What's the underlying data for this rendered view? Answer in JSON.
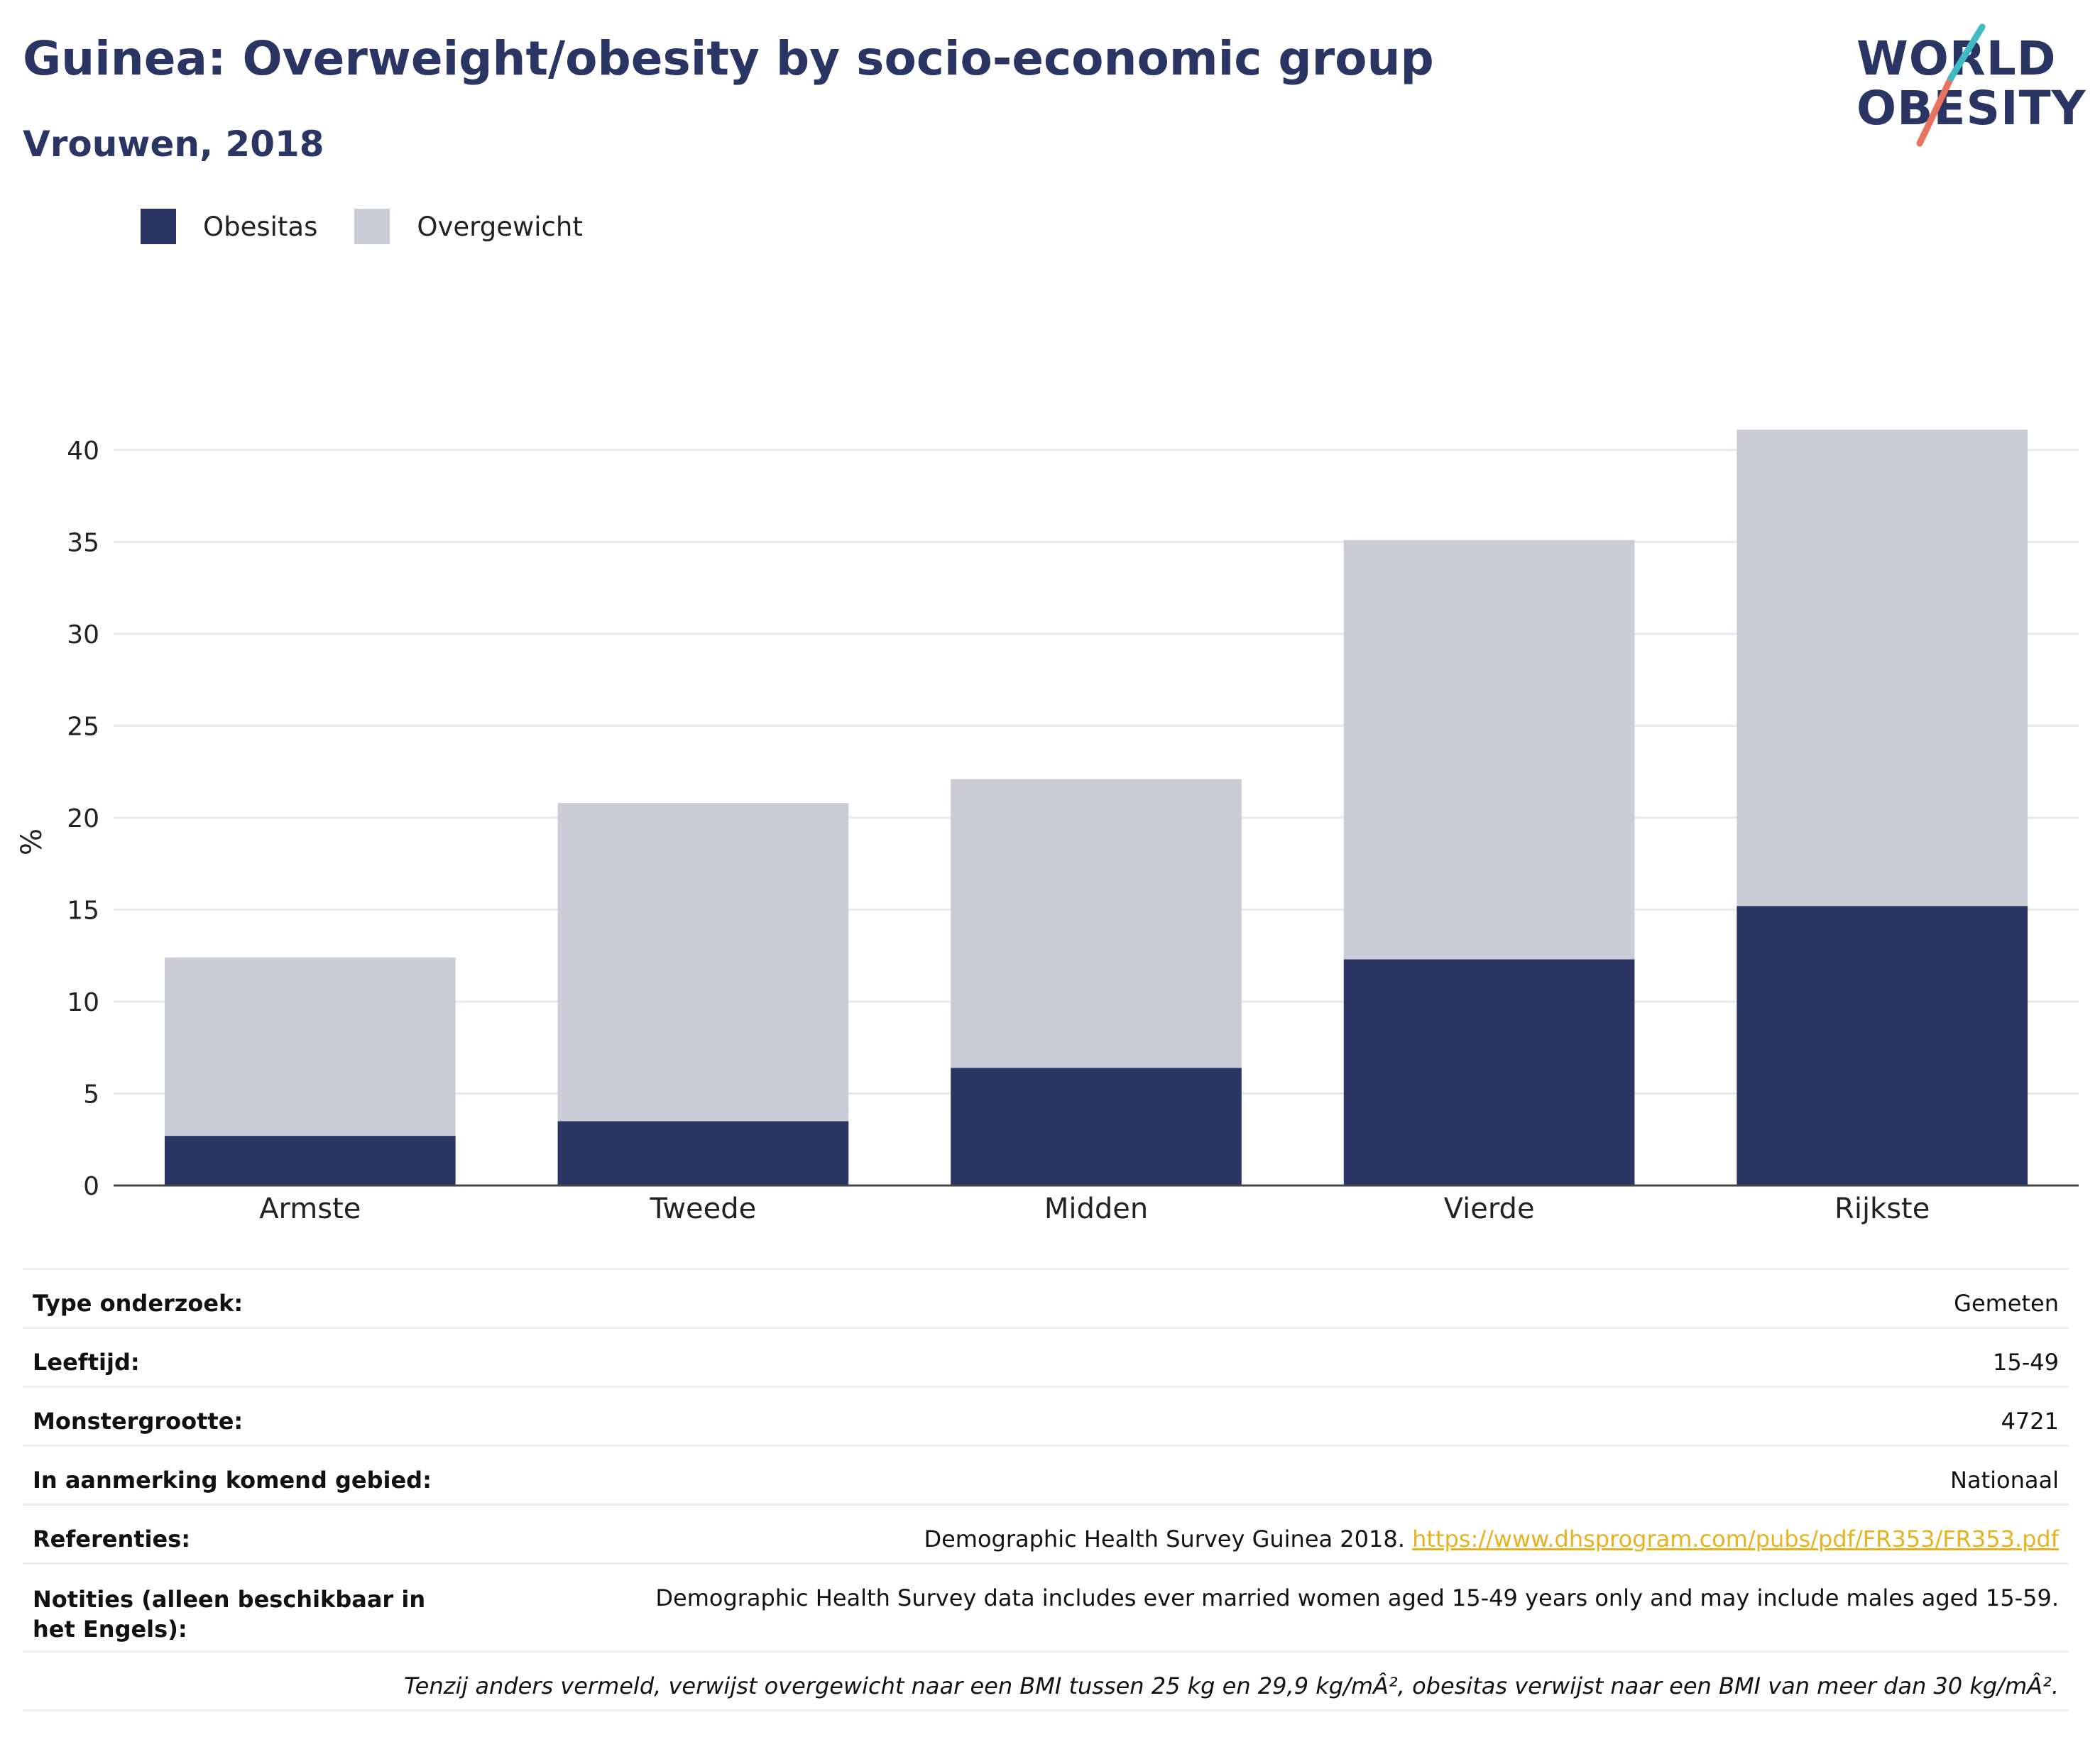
{
  "title": "Guinea: Overweight/obesity by socio-economic group",
  "subtitle": "Vrouwen, 2018",
  "logo": {
    "line1": "WORLD",
    "line2": "OBESITY"
  },
  "colors": {
    "obesitas": "#2a3563",
    "overgewicht": "#caccd8",
    "accent_teal": "#3fb9c4",
    "accent_coral": "#e8735f",
    "link": "#e8b21e"
  },
  "legend": [
    {
      "label": "Obesitas"
    },
    {
      "label": "Overgewicht"
    }
  ],
  "chart_data": {
    "type": "bar",
    "stacked": true,
    "categories": [
      "Armste",
      "Tweede",
      "Midden",
      "Vierde",
      "Rijkste"
    ],
    "series": [
      {
        "name": "Obesitas",
        "values": [
          2.7,
          3.5,
          6.4,
          12.3,
          15.2
        ]
      },
      {
        "name": "Overgewicht",
        "values": [
          9.7,
          17.3,
          15.7,
          22.8,
          25.9
        ]
      }
    ],
    "ylabel": "%",
    "yticks": [
      0,
      5,
      10,
      15,
      20,
      25,
      30,
      35,
      40
    ],
    "ylim": [
      0,
      42
    ],
    "grid": true,
    "legend_position": "top-left"
  },
  "info": {
    "rows": [
      {
        "key": "Type onderzoek:",
        "value": "Gemeten"
      },
      {
        "key": "Leeftijd:",
        "value": "15-49"
      },
      {
        "key": "Monstergrootte:",
        "value": "4721"
      },
      {
        "key": "In aanmerking komend gebied:",
        "value": "Nationaal"
      }
    ],
    "references": {
      "key": "Referenties:",
      "text": "Demographic Health Survey Guinea 2018. ",
      "link": "https://www.dhsprogram.com/pubs/pdf/FR353/FR353.pdf"
    },
    "notes": {
      "key": "Notities (alleen beschikbaar in het Engels):",
      "value": "Demographic Health Survey data includes ever married women aged 15-49 years only and may include males aged 15-59."
    },
    "footnote": "Tenzij anders vermeld, verwijst overgewicht naar een BMI tussen 25 kg en 29,9 kg/mÂ², obesitas verwijst naar een BMI van meer dan 30 kg/mÂ²."
  }
}
